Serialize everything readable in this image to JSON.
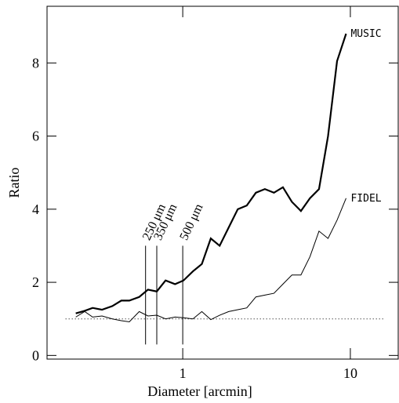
{
  "chart_data": {
    "type": "line",
    "xlabel": "Diameter [arcmin]",
    "ylabel": "Ratio",
    "xscale": "log",
    "xlim": [
      0.155,
      19.3
    ],
    "ylim": [
      -0.1,
      9.55
    ],
    "xticks": [
      1,
      10
    ],
    "yticks": [
      0,
      2,
      4,
      6,
      8
    ],
    "x": [
      0.23,
      0.26,
      0.29,
      0.33,
      0.38,
      0.43,
      0.48,
      0.55,
      0.62,
      0.7,
      0.79,
      0.9,
      1.01,
      1.15,
      1.3,
      1.47,
      1.66,
      1.88,
      2.13,
      2.41,
      2.73,
      3.09,
      3.5,
      3.96,
      4.48,
      5.07,
      5.74,
      6.5,
      7.36,
      8.33,
      9.43
    ],
    "series": [
      {
        "name": "MUSIC",
        "color": "#000000",
        "width": 2.2,
        "values": [
          1.15,
          1.22,
          1.3,
          1.25,
          1.35,
          1.5,
          1.5,
          1.6,
          1.8,
          1.75,
          2.05,
          1.95,
          2.05,
          2.3,
          2.5,
          3.2,
          3.0,
          3.5,
          4.0,
          4.1,
          4.45,
          4.55,
          4.45,
          4.6,
          4.2,
          3.95,
          4.3,
          4.55,
          6.0,
          8.05,
          8.8
        ]
      },
      {
        "name": "FIDEL",
        "color": "#000000",
        "width": 1,
        "values": [
          1.05,
          1.2,
          1.05,
          1.08,
          1.0,
          0.95,
          0.92,
          1.2,
          1.08,
          1.1,
          1.0,
          1.05,
          1.03,
          1.0,
          1.2,
          0.98,
          1.1,
          1.2,
          1.25,
          1.3,
          1.6,
          1.65,
          1.7,
          1.95,
          2.2,
          2.2,
          2.7,
          3.4,
          3.2,
          3.7,
          4.3
        ]
      }
    ],
    "reference_line": {
      "y": 1,
      "x": [
        0.2,
        16
      ]
    },
    "markers": [
      {
        "x": 0.6,
        "label": "250 μm",
        "y": [
          0.3,
          3.0
        ]
      },
      {
        "x": 0.7,
        "label": "350 μm",
        "y": [
          0.3,
          3.0
        ]
      },
      {
        "x": 1.0,
        "label": "500 μm",
        "y": [
          0.3,
          3.0
        ]
      }
    ]
  }
}
